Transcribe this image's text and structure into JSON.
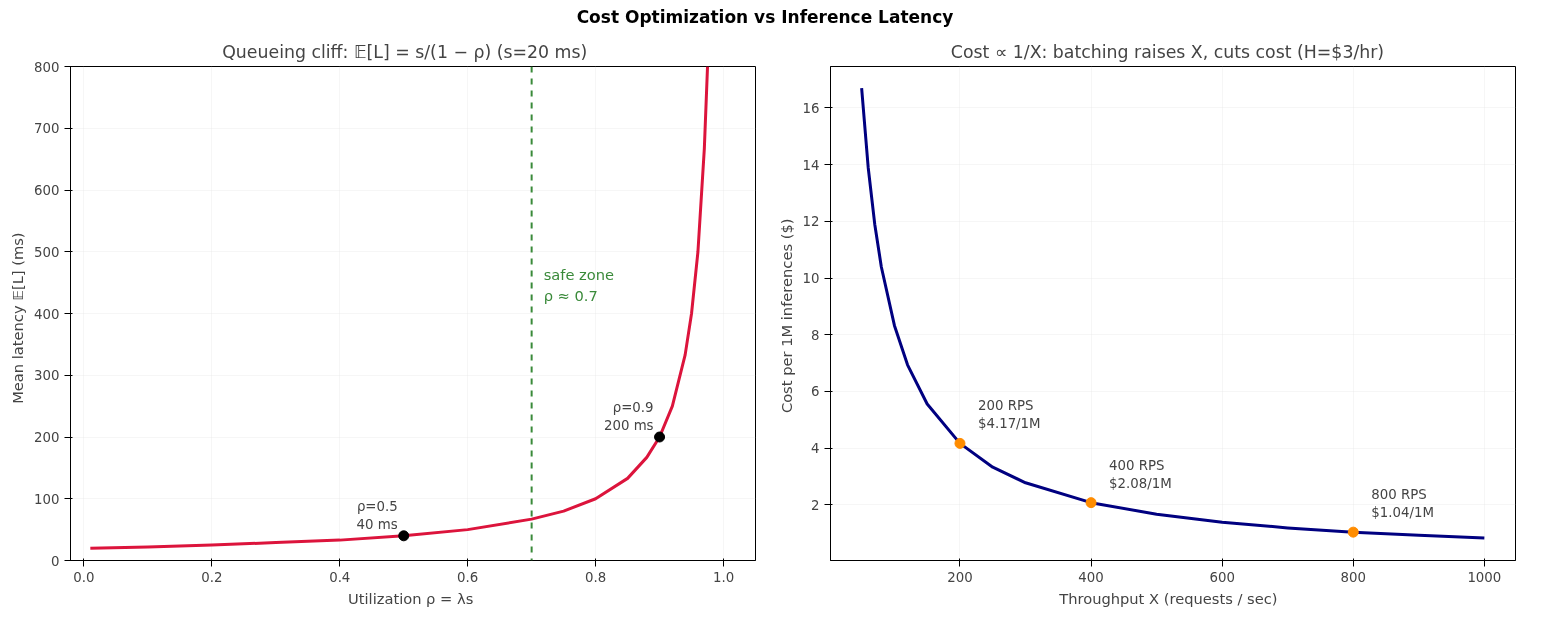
{
  "chart_data": [
    {
      "type": "line",
      "title": "Queueing cliff:  𝔼[L] = s/(1 − ρ)   (s=20 ms)",
      "xlabel": "Utilization  ρ = λs",
      "ylabel": "Mean latency  𝔼[L]  (ms)",
      "annotations": [
        "Cost Optimization vs Inference Latency",
        {
          "text": "ρ=0.5\n40 ms",
          "x": 0.5,
          "y": 40
        },
        {
          "text": "ρ=0.9\n200 ms",
          "x": 0.9,
          "y": 200
        }
      ],
      "xlim": [
        -0.021,
        1.05
      ],
      "ylim": [
        0,
        800
      ],
      "xticks": [
        {
          "value": 0,
          "label": "0.0"
        },
        0.2,
        0.4,
        0.6,
        0.8,
        {
          "value": 1,
          "label": "1.0"
        }
      ],
      "yticks": [
        0,
        100,
        200,
        300,
        400,
        500,
        600,
        700,
        800
      ],
      "grid": true,
      "series": [
        {
          "color": "#dc143c",
          "x": [
            0.01,
            0.1,
            0.2,
            0.3,
            0.4,
            0.5,
            0.6,
            0.7,
            0.75,
            0.8,
            0.85,
            0.88,
            0.9,
            0.92,
            0.94,
            0.95,
            0.96,
            0.97,
            0.975
          ],
          "values": [
            20,
            22,
            25,
            29,
            33,
            40,
            50,
            67,
            80,
            100,
            133,
            167,
            200,
            250,
            333,
            400,
            500,
            667,
            800
          ]
        },
        {
          "type": "scatter",
          "color": "#000000",
          "marker": "circle",
          "x": [
            0.5,
            0.9
          ],
          "values": [
            40,
            200
          ]
        }
      ],
      "ref_lines": [
        {
          "axis": "x",
          "value": 0.7,
          "label": "safe zone\nρ ≈ 0.7",
          "color": "#3a8a3a",
          "line_style": "dashed"
        }
      ]
    },
    {
      "type": "line",
      "title": "Cost ∝ 1/X:  batching raises X, cuts cost  (H=$3/hr)",
      "xlabel": "Throughput  X  (requests / sec)",
      "ylabel": "Cost per 1M inferences  ($)",
      "annotations": [
        {
          "text": "200 RPS\n$4.17/1M",
          "x": 200,
          "y": 4.17
        },
        {
          "text": "400 RPS\n$2.08/1M",
          "x": 400,
          "y": 2.08
        },
        {
          "text": "800 RPS\n$1.04/1M",
          "x": 800,
          "y": 1.04
        }
      ],
      "xlim": [
        2.5,
        1047.5
      ],
      "ylim": [
        0.04,
        17.46
      ],
      "xticks": [
        200,
        400,
        600,
        800,
        1000
      ],
      "yticks": [
        2,
        4,
        6,
        8,
        10,
        12,
        14,
        16
      ],
      "grid": true,
      "series": [
        {
          "color": "#000080",
          "x": [
            50,
            60,
            70,
            80,
            100,
            120,
            150,
            200,
            250,
            300,
            400,
            500,
            600,
            700,
            800,
            900,
            1000
          ],
          "values": [
            16.7,
            13.9,
            11.9,
            10.4,
            8.33,
            6.94,
            5.56,
            4.17,
            3.33,
            2.78,
            2.08,
            1.67,
            1.39,
            1.19,
            1.04,
            0.93,
            0.83
          ]
        },
        {
          "type": "scatter",
          "color": "#ff8c00",
          "marker": "circle",
          "x": [
            200,
            400,
            800
          ],
          "values": [
            4.17,
            2.08,
            1.04
          ]
        }
      ]
    }
  ]
}
